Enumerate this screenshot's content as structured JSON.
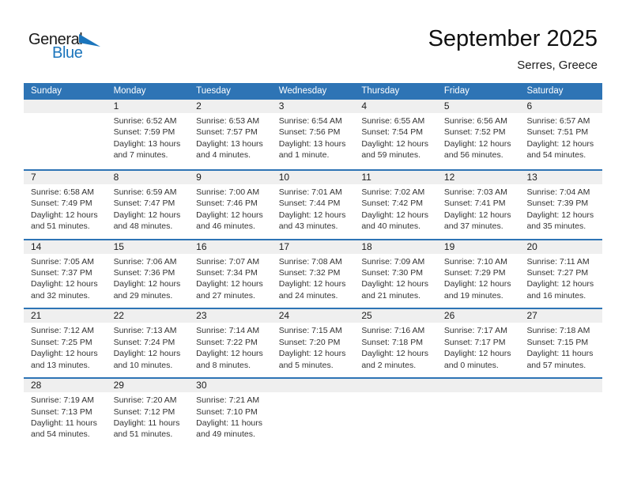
{
  "logo": {
    "part1": "General",
    "part2": "Blue"
  },
  "header": {
    "title": "September 2025",
    "subtitle": "Serres, Greece"
  },
  "colors": {
    "header_bg": "#2E74B5",
    "week_border": "#2E74B5",
    "day_stripe_bg": "#EFEFEF",
    "logo_blue": "#1B75BC",
    "header_text": "#FFFFFF"
  },
  "weekdays": [
    "Sunday",
    "Monday",
    "Tuesday",
    "Wednesday",
    "Thursday",
    "Friday",
    "Saturday"
  ],
  "weeks": [
    [
      {
        "day": ""
      },
      {
        "day": "1",
        "sunrise": "Sunrise: 6:52 AM",
        "sunset": "Sunset: 7:59 PM",
        "daylight": "Daylight: 13 hours and 7 minutes."
      },
      {
        "day": "2",
        "sunrise": "Sunrise: 6:53 AM",
        "sunset": "Sunset: 7:57 PM",
        "daylight": "Daylight: 13 hours and 4 minutes."
      },
      {
        "day": "3",
        "sunrise": "Sunrise: 6:54 AM",
        "sunset": "Sunset: 7:56 PM",
        "daylight": "Daylight: 13 hours and 1 minute."
      },
      {
        "day": "4",
        "sunrise": "Sunrise: 6:55 AM",
        "sunset": "Sunset: 7:54 PM",
        "daylight": "Daylight: 12 hours and 59 minutes."
      },
      {
        "day": "5",
        "sunrise": "Sunrise: 6:56 AM",
        "sunset": "Sunset: 7:52 PM",
        "daylight": "Daylight: 12 hours and 56 minutes."
      },
      {
        "day": "6",
        "sunrise": "Sunrise: 6:57 AM",
        "sunset": "Sunset: 7:51 PM",
        "daylight": "Daylight: 12 hours and 54 minutes."
      }
    ],
    [
      {
        "day": "7",
        "sunrise": "Sunrise: 6:58 AM",
        "sunset": "Sunset: 7:49 PM",
        "daylight": "Daylight: 12 hours and 51 minutes."
      },
      {
        "day": "8",
        "sunrise": "Sunrise: 6:59 AM",
        "sunset": "Sunset: 7:47 PM",
        "daylight": "Daylight: 12 hours and 48 minutes."
      },
      {
        "day": "9",
        "sunrise": "Sunrise: 7:00 AM",
        "sunset": "Sunset: 7:46 PM",
        "daylight": "Daylight: 12 hours and 46 minutes."
      },
      {
        "day": "10",
        "sunrise": "Sunrise: 7:01 AM",
        "sunset": "Sunset: 7:44 PM",
        "daylight": "Daylight: 12 hours and 43 minutes."
      },
      {
        "day": "11",
        "sunrise": "Sunrise: 7:02 AM",
        "sunset": "Sunset: 7:42 PM",
        "daylight": "Daylight: 12 hours and 40 minutes."
      },
      {
        "day": "12",
        "sunrise": "Sunrise: 7:03 AM",
        "sunset": "Sunset: 7:41 PM",
        "daylight": "Daylight: 12 hours and 37 minutes."
      },
      {
        "day": "13",
        "sunrise": "Sunrise: 7:04 AM",
        "sunset": "Sunset: 7:39 PM",
        "daylight": "Daylight: 12 hours and 35 minutes."
      }
    ],
    [
      {
        "day": "14",
        "sunrise": "Sunrise: 7:05 AM",
        "sunset": "Sunset: 7:37 PM",
        "daylight": "Daylight: 12 hours and 32 minutes."
      },
      {
        "day": "15",
        "sunrise": "Sunrise: 7:06 AM",
        "sunset": "Sunset: 7:36 PM",
        "daylight": "Daylight: 12 hours and 29 minutes."
      },
      {
        "day": "16",
        "sunrise": "Sunrise: 7:07 AM",
        "sunset": "Sunset: 7:34 PM",
        "daylight": "Daylight: 12 hours and 27 minutes."
      },
      {
        "day": "17",
        "sunrise": "Sunrise: 7:08 AM",
        "sunset": "Sunset: 7:32 PM",
        "daylight": "Daylight: 12 hours and 24 minutes."
      },
      {
        "day": "18",
        "sunrise": "Sunrise: 7:09 AM",
        "sunset": "Sunset: 7:30 PM",
        "daylight": "Daylight: 12 hours and 21 minutes."
      },
      {
        "day": "19",
        "sunrise": "Sunrise: 7:10 AM",
        "sunset": "Sunset: 7:29 PM",
        "daylight": "Daylight: 12 hours and 19 minutes."
      },
      {
        "day": "20",
        "sunrise": "Sunrise: 7:11 AM",
        "sunset": "Sunset: 7:27 PM",
        "daylight": "Daylight: 12 hours and 16 minutes."
      }
    ],
    [
      {
        "day": "21",
        "sunrise": "Sunrise: 7:12 AM",
        "sunset": "Sunset: 7:25 PM",
        "daylight": "Daylight: 12 hours and 13 minutes."
      },
      {
        "day": "22",
        "sunrise": "Sunrise: 7:13 AM",
        "sunset": "Sunset: 7:24 PM",
        "daylight": "Daylight: 12 hours and 10 minutes."
      },
      {
        "day": "23",
        "sunrise": "Sunrise: 7:14 AM",
        "sunset": "Sunset: 7:22 PM",
        "daylight": "Daylight: 12 hours and 8 minutes."
      },
      {
        "day": "24",
        "sunrise": "Sunrise: 7:15 AM",
        "sunset": "Sunset: 7:20 PM",
        "daylight": "Daylight: 12 hours and 5 minutes."
      },
      {
        "day": "25",
        "sunrise": "Sunrise: 7:16 AM",
        "sunset": "Sunset: 7:18 PM",
        "daylight": "Daylight: 12 hours and 2 minutes."
      },
      {
        "day": "26",
        "sunrise": "Sunrise: 7:17 AM",
        "sunset": "Sunset: 7:17 PM",
        "daylight": "Daylight: 12 hours and 0 minutes."
      },
      {
        "day": "27",
        "sunrise": "Sunrise: 7:18 AM",
        "sunset": "Sunset: 7:15 PM",
        "daylight": "Daylight: 11 hours and 57 minutes."
      }
    ],
    [
      {
        "day": "28",
        "sunrise": "Sunrise: 7:19 AM",
        "sunset": "Sunset: 7:13 PM",
        "daylight": "Daylight: 11 hours and 54 minutes."
      },
      {
        "day": "29",
        "sunrise": "Sunrise: 7:20 AM",
        "sunset": "Sunset: 7:12 PM",
        "daylight": "Daylight: 11 hours and 51 minutes."
      },
      {
        "day": "30",
        "sunrise": "Sunrise: 7:21 AM",
        "sunset": "Sunset: 7:10 PM",
        "daylight": "Daylight: 11 hours and 49 minutes."
      },
      {
        "day": ""
      },
      {
        "day": ""
      },
      {
        "day": ""
      },
      {
        "day": ""
      }
    ]
  ]
}
